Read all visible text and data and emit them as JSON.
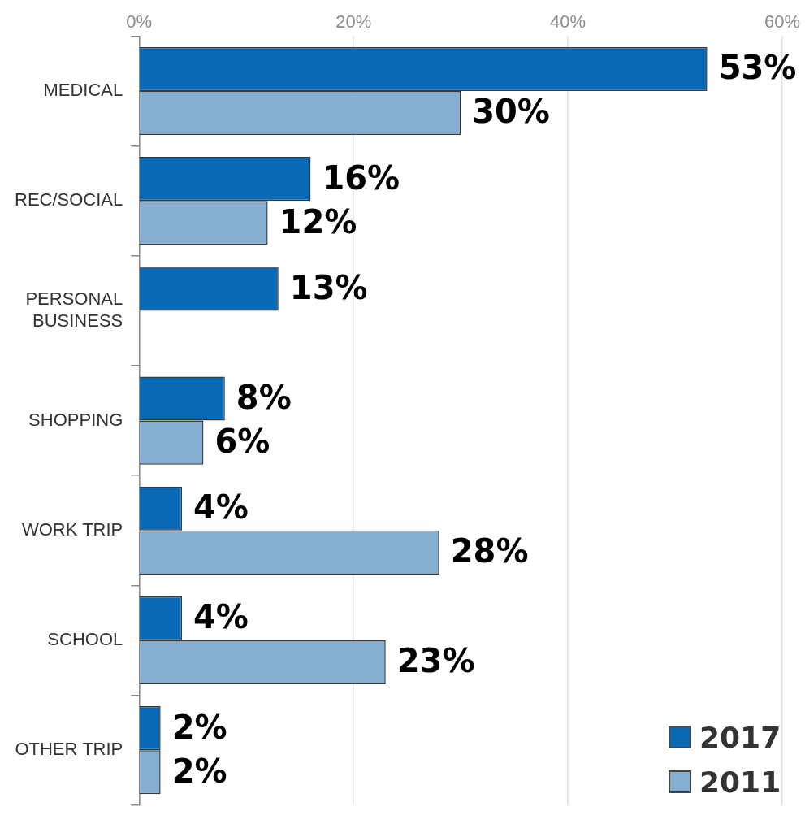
{
  "chart_data": {
    "type": "bar",
    "orientation": "horizontal",
    "categories": [
      "MEDICAL",
      "REC/SOCIAL",
      "PERSONAL BUSINESS",
      "SHOPPING",
      "WORK TRIP",
      "SCHOOL",
      "OTHER TRIP"
    ],
    "series": [
      {
        "name": "2017",
        "color": "#0a69b5",
        "values": [
          53,
          16,
          13,
          8,
          4,
          4,
          2
        ],
        "value_labels": [
          "53%",
          "16%",
          "13%",
          "8%",
          "4%",
          "4%",
          "2%"
        ]
      },
      {
        "name": "2011",
        "color": "#86aed0",
        "values": [
          30,
          12,
          null,
          6,
          28,
          23,
          2
        ],
        "value_labels": [
          "30%",
          "12%",
          null,
          "6%",
          "28%",
          "23%",
          "2%"
        ]
      }
    ],
    "xlim": [
      0,
      60
    ],
    "xticks": [
      {
        "value": 0,
        "label": "0%"
      },
      {
        "value": 20,
        "label": "20%"
      },
      {
        "value": 40,
        "label": "40%"
      },
      {
        "value": 60,
        "label": "60%"
      }
    ],
    "grid": "x",
    "legend": "bottom right"
  }
}
